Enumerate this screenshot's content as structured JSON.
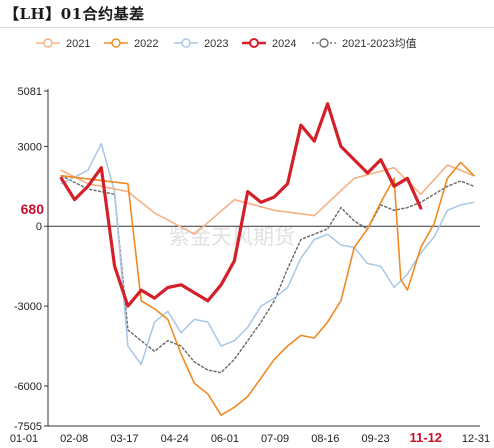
{
  "title": "【LH】01合约基差",
  "chart_data": {
    "type": "line",
    "title": "【LH】01合约基差",
    "x_tick_labels": [
      "01-01",
      "02-08",
      "03-17",
      "04-24",
      "06-01",
      "07-09",
      "08-16",
      "09-23",
      "11-12",
      "12-31"
    ],
    "highlight_x_label": "11-12",
    "y_tick_labels": [
      "5081",
      "3000",
      "0",
      "-3000",
      "-6000",
      "-7505"
    ],
    "ylim": [
      -7505,
      5081
    ],
    "current_value_label": "680",
    "watermark": "紫金天风期货",
    "legend_position": "top",
    "grid": false,
    "series": [
      {
        "name": "2021",
        "color": "#f5b183",
        "width": 1.6,
        "marker": "circle-open",
        "points": [
          [
            1,
            2100
          ],
          [
            3,
            1600
          ],
          [
            6,
            1300
          ],
          [
            8,
            500
          ],
          [
            11,
            -300
          ],
          [
            14,
            1000
          ],
          [
            17,
            600
          ],
          [
            20,
            400
          ],
          [
            23,
            1800
          ],
          [
            26,
            2200
          ],
          [
            28,
            1200
          ],
          [
            30,
            2300
          ],
          [
            32,
            1900
          ]
        ]
      },
      {
        "name": "2022",
        "color": "#f08a24",
        "width": 1.6,
        "marker": "circle-open",
        "points": [
          [
            1,
            1900
          ],
          [
            6,
            1600
          ],
          [
            7,
            -2800
          ],
          [
            8,
            -3100
          ],
          [
            9,
            -3500
          ],
          [
            10,
            -4800
          ],
          [
            11,
            -5900
          ],
          [
            12,
            -6300
          ],
          [
            13,
            -7100
          ],
          [
            14,
            -6800
          ],
          [
            15,
            -6400
          ],
          [
            16,
            -5700
          ],
          [
            17,
            -5000
          ],
          [
            18,
            -4500
          ],
          [
            19,
            -4100
          ],
          [
            20,
            -4200
          ],
          [
            21,
            -3600
          ],
          [
            22,
            -2800
          ],
          [
            23,
            -800
          ],
          [
            24,
            -100
          ],
          [
            25,
            900
          ],
          [
            26,
            1800
          ],
          [
            26.5,
            -2000
          ],
          [
            27,
            -2400
          ],
          [
            28,
            -800
          ],
          [
            29,
            100
          ],
          [
            30,
            1800
          ],
          [
            31,
            2400
          ],
          [
            32,
            1900
          ]
        ]
      },
      {
        "name": "2023",
        "color": "#a9c6e6",
        "width": 1.5,
        "marker": "circle-open",
        "points": [
          [
            1,
            1600
          ],
          [
            3,
            2100
          ],
          [
            4,
            3100
          ],
          [
            5,
            1300
          ],
          [
            6,
            -4500
          ],
          [
            7,
            -5200
          ],
          [
            8,
            -3600
          ],
          [
            9,
            -3200
          ],
          [
            10,
            -4000
          ],
          [
            11,
            -3500
          ],
          [
            12,
            -3600
          ],
          [
            13,
            -4500
          ],
          [
            14,
            -4300
          ],
          [
            15,
            -3800
          ],
          [
            16,
            -3000
          ],
          [
            17,
            -2700
          ],
          [
            18,
            -2300
          ],
          [
            19,
            -1200
          ],
          [
            20,
            -500
          ],
          [
            21,
            -300
          ],
          [
            22,
            -700
          ],
          [
            23,
            -800
          ],
          [
            24,
            -1400
          ],
          [
            25,
            -1500
          ],
          [
            26,
            -2300
          ],
          [
            27,
            -1800
          ],
          [
            28,
            -1000
          ],
          [
            29,
            -400
          ],
          [
            30,
            600
          ],
          [
            31,
            800
          ],
          [
            32,
            900
          ]
        ]
      },
      {
        "name": "2024",
        "color": "#d4202a",
        "width": 3.2,
        "marker": "circle-open",
        "points": [
          [
            1,
            1800
          ],
          [
            2,
            1000
          ],
          [
            3,
            1500
          ],
          [
            4,
            2200
          ],
          [
            5,
            -1500
          ],
          [
            6,
            -3000
          ],
          [
            7,
            -2400
          ],
          [
            8,
            -2700
          ],
          [
            9,
            -2300
          ],
          [
            10,
            -2200
          ],
          [
            11,
            -2500
          ],
          [
            12,
            -2800
          ],
          [
            13,
            -2200
          ],
          [
            14,
            -1300
          ],
          [
            15,
            1300
          ],
          [
            16,
            900
          ],
          [
            17,
            1100
          ],
          [
            18,
            1600
          ],
          [
            19,
            3800
          ],
          [
            20,
            3200
          ],
          [
            21,
            4600
          ],
          [
            22,
            3000
          ],
          [
            23,
            2500
          ],
          [
            24,
            2000
          ],
          [
            25,
            2500
          ],
          [
            26,
            1500
          ],
          [
            27,
            1800
          ],
          [
            28,
            680
          ]
        ]
      },
      {
        "name": "2021-2023均值",
        "color": "#6f6f6f",
        "width": 1.5,
        "dash": "2,2.5",
        "marker": "circle-open",
        "points": [
          [
            1,
            1900
          ],
          [
            3,
            1400
          ],
          [
            5,
            1200
          ],
          [
            6,
            -3900
          ],
          [
            7,
            -4300
          ],
          [
            8,
            -4700
          ],
          [
            9,
            -4300
          ],
          [
            10,
            -4500
          ],
          [
            11,
            -5100
          ],
          [
            12,
            -5400
          ],
          [
            13,
            -5500
          ],
          [
            14,
            -5000
          ],
          [
            15,
            -4300
          ],
          [
            16,
            -3600
          ],
          [
            17,
            -2800
          ],
          [
            18,
            -1600
          ],
          [
            19,
            -500
          ],
          [
            20,
            -300
          ],
          [
            21,
            -100
          ],
          [
            22,
            700
          ],
          [
            23,
            200
          ],
          [
            24,
            -100
          ],
          [
            25,
            800
          ],
          [
            26,
            600
          ],
          [
            27,
            700
          ],
          [
            28,
            900
          ],
          [
            29,
            1200
          ],
          [
            30,
            1500
          ],
          [
            31,
            1700
          ],
          [
            32,
            1500
          ]
        ]
      }
    ]
  }
}
